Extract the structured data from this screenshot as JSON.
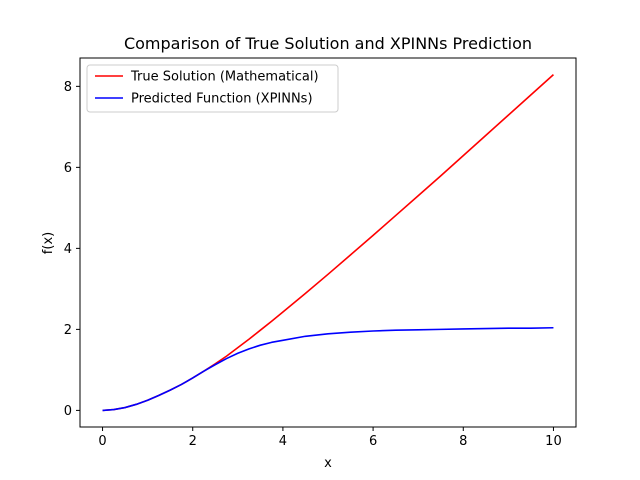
{
  "chart_data": {
    "type": "line",
    "title": "Comparison of True Solution and XPINNs Prediction",
    "xlabel": "x",
    "ylabel": "f(x)",
    "xlim": [
      -0.5,
      10.5
    ],
    "ylim": [
      -0.41,
      8.7
    ],
    "xticks": [
      0,
      2,
      4,
      6,
      8,
      10
    ],
    "yticks": [
      0,
      2,
      4,
      6,
      8
    ],
    "grid": false,
    "legend_position": "top-left",
    "series": [
      {
        "name": "True Solution (Mathematical)",
        "color": "#ff0000",
        "x": [
          0,
          0.25,
          0.5,
          0.75,
          1.0,
          1.25,
          1.5,
          1.75,
          2.0,
          2.25,
          2.5,
          2.75,
          3.0,
          3.25,
          3.5,
          3.75,
          4.0,
          4.5,
          5.0,
          5.5,
          6.0,
          6.5,
          7.0,
          7.5,
          8.0,
          8.5,
          9.0,
          9.5,
          10.0
        ],
        "y": [
          0.0,
          0.02,
          0.07,
          0.15,
          0.25,
          0.37,
          0.5,
          0.64,
          0.8,
          0.97,
          1.15,
          1.34,
          1.55,
          1.76,
          1.98,
          2.2,
          2.43,
          2.89,
          3.36,
          3.84,
          4.32,
          4.81,
          5.3,
          5.79,
          6.29,
          6.79,
          7.29,
          7.79,
          8.29
        ]
      },
      {
        "name": "Predicted Function (XPINNs)",
        "color": "#0000ff",
        "x": [
          0,
          0.25,
          0.5,
          0.75,
          1.0,
          1.25,
          1.5,
          1.75,
          2.0,
          2.25,
          2.5,
          2.75,
          3.0,
          3.25,
          3.5,
          3.75,
          4.0,
          4.5,
          5.0,
          5.5,
          6.0,
          6.5,
          7.0,
          7.5,
          8.0,
          8.5,
          9.0,
          9.5,
          10.0
        ],
        "y": [
          0.0,
          0.02,
          0.07,
          0.15,
          0.25,
          0.37,
          0.5,
          0.64,
          0.8,
          0.97,
          1.13,
          1.28,
          1.41,
          1.52,
          1.61,
          1.68,
          1.73,
          1.83,
          1.89,
          1.93,
          1.96,
          1.98,
          1.99,
          2.0,
          2.01,
          2.02,
          2.03,
          2.03,
          2.04
        ]
      }
    ]
  }
}
